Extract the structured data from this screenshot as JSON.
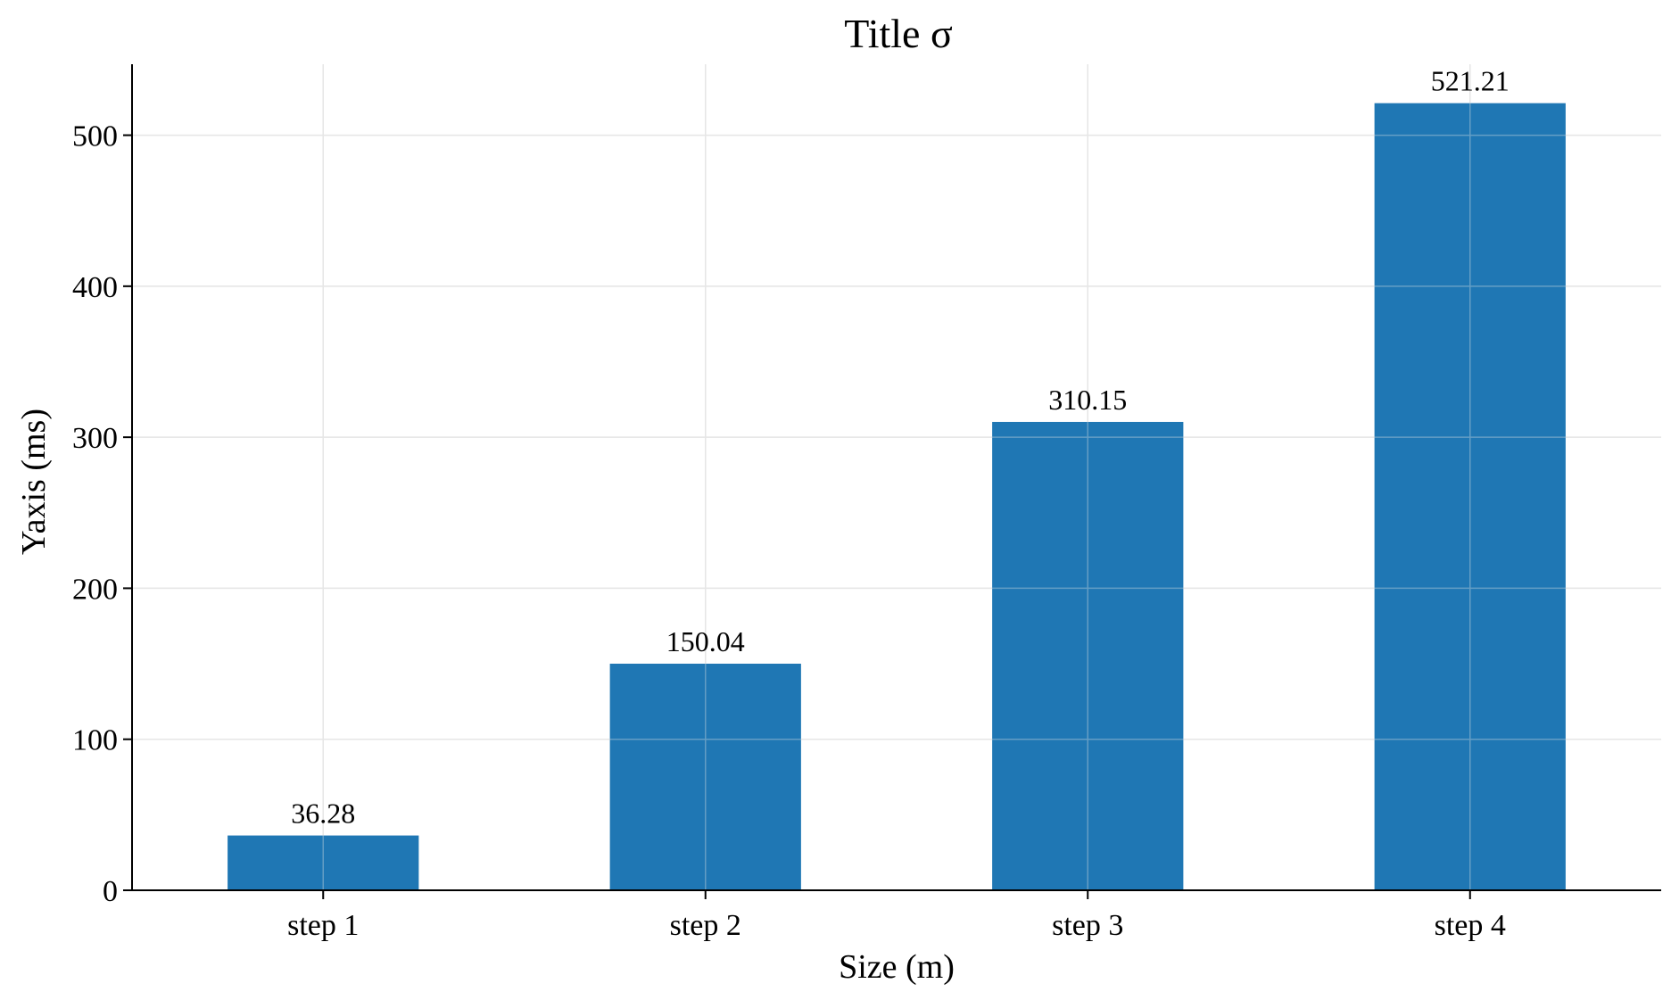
{
  "chart_data": {
    "type": "bar",
    "title": "Title σ",
    "xlabel": "Size (m)",
    "ylabel": "Yaxis (ms)",
    "categories": [
      "step 1",
      "step 2",
      "step 3",
      "step 4"
    ],
    "values": [
      36.28,
      150.04,
      310.15,
      521.21
    ],
    "data_labels": [
      "36.28",
      "150.04",
      "310.15",
      "521.21"
    ],
    "ylim": [
      0,
      547
    ],
    "yticks": [
      0,
      100,
      200,
      300,
      400,
      500
    ],
    "grid": true,
    "bar_color": "#1f77b4",
    "legend": "none"
  }
}
